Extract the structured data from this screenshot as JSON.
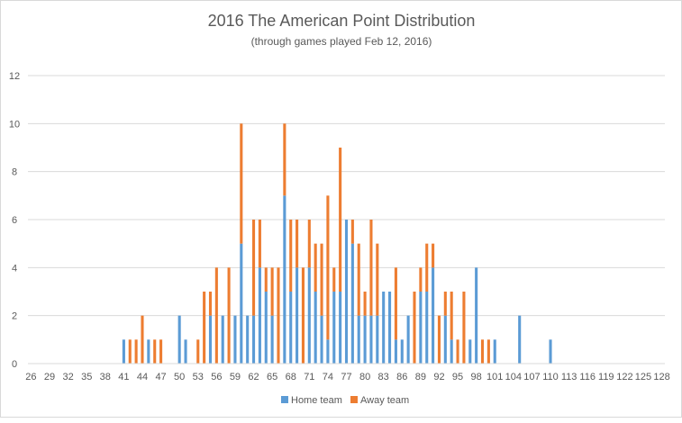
{
  "chart_data": {
    "type": "bar",
    "stacked": true,
    "title": "2016 The American Point Distribution",
    "subtitle": "(through games played Feb 12, 2016)",
    "xlabel": "",
    "ylabel": "",
    "ylim": [
      0,
      12
    ],
    "yticks": [
      0,
      2,
      4,
      6,
      8,
      10,
      12
    ],
    "grid": true,
    "legend_position": "bottom",
    "x_start": 26,
    "x_end": 128,
    "x_tick_labels": [
      "26",
      "29",
      "32",
      "35",
      "38",
      "41",
      "44",
      "47",
      "50",
      "53",
      "56",
      "59",
      "62",
      "65",
      "68",
      "71",
      "74",
      "77",
      "80",
      "83",
      "86",
      "89",
      "92",
      "95",
      "98",
      "101",
      "104",
      "107",
      "110",
      "113",
      "116",
      "119",
      "122",
      "125",
      "128"
    ],
    "x": [
      41,
      42,
      43,
      44,
      45,
      46,
      47,
      50,
      51,
      53,
      54,
      55,
      56,
      57,
      58,
      59,
      60,
      61,
      62,
      63,
      64,
      65,
      66,
      67,
      68,
      69,
      70,
      71,
      72,
      73,
      74,
      75,
      76,
      77,
      78,
      79,
      80,
      81,
      82,
      83,
      84,
      85,
      86,
      87,
      88,
      89,
      90,
      91,
      92,
      93,
      94,
      95,
      96,
      97,
      98,
      99,
      100,
      101,
      105,
      110
    ],
    "series": [
      {
        "name": "Home team",
        "color": "#5b9bd5",
        "values": [
          1,
          0,
          0,
          0,
          1,
          0,
          0,
          2,
          1,
          0,
          0,
          2,
          0,
          2,
          0,
          2,
          5,
          2,
          2,
          4,
          3,
          2,
          0,
          7,
          3,
          4,
          0,
          4,
          3,
          2,
          1,
          3,
          3,
          6,
          5,
          2,
          2,
          2,
          2,
          3,
          3,
          1,
          1,
          2,
          0,
          3,
          3,
          4,
          0,
          2,
          1,
          0,
          0,
          1,
          4,
          0,
          0,
          1,
          2,
          1
        ]
      },
      {
        "name": "Away team",
        "color": "#ed7d31",
        "values": [
          0,
          1,
          1,
          2,
          0,
          1,
          1,
          0,
          0,
          1,
          3,
          1,
          4,
          0,
          4,
          0,
          5,
          0,
          4,
          2,
          1,
          2,
          4,
          3,
          3,
          2,
          4,
          2,
          2,
          3,
          6,
          1,
          6,
          0,
          1,
          3,
          1,
          4,
          3,
          0,
          0,
          3,
          0,
          0,
          3,
          1,
          2,
          1,
          2,
          1,
          2,
          1,
          3,
          0,
          0,
          1,
          1,
          0,
          0,
          0
        ]
      }
    ]
  }
}
